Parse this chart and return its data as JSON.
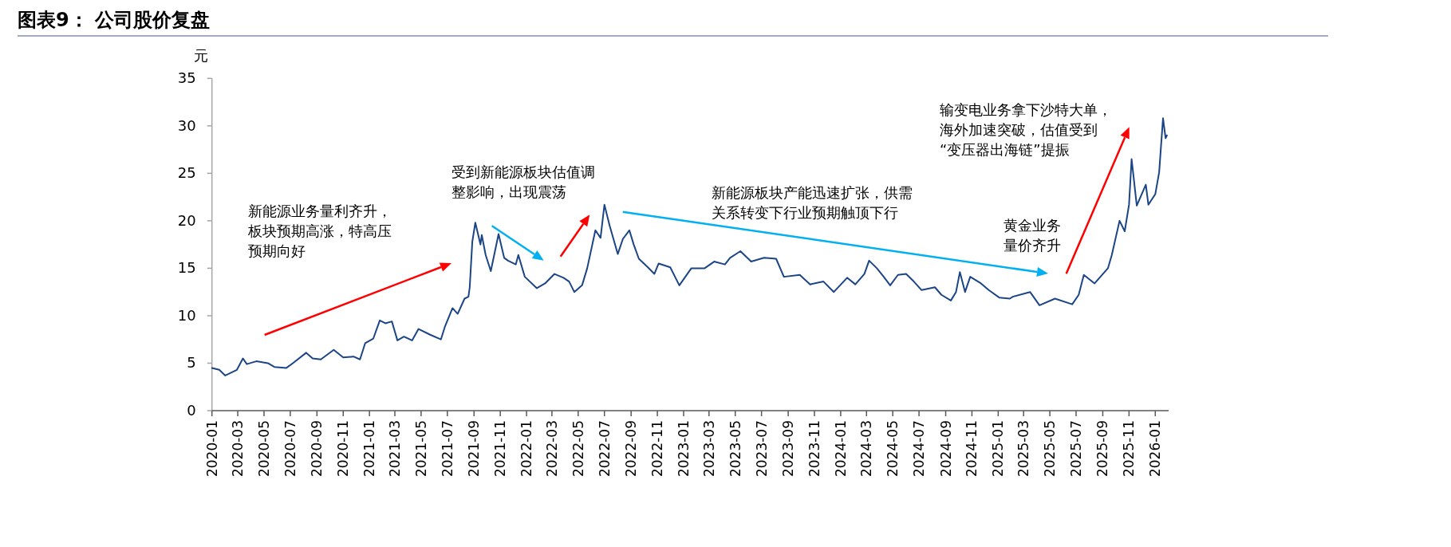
{
  "chart_data": {
    "type": "line",
    "title": "图表9： 公司股价复盘",
    "ylabel": "元",
    "x": [
      "2020-01-01",
      "2020-01-18",
      "2020-02-01",
      "2020-02-28",
      "2020-03-13",
      "2020-03-22",
      "2020-04-13",
      "2020-05-10",
      "2020-05-25",
      "2020-06-22",
      "2020-07-07",
      "2020-08-07",
      "2020-08-22",
      "2020-09-10",
      "2020-10-10",
      "2020-11-01",
      "2020-11-25",
      "2020-12-10",
      "2020-12-22",
      "2021-01-10",
      "2021-01-25",
      "2021-02-07",
      "2021-02-22",
      "2021-03-07",
      "2021-03-22",
      "2021-04-10",
      "2021-04-25",
      "2021-05-22",
      "2021-06-16",
      "2021-06-25",
      "2021-07-13",
      "2021-07-25",
      "2021-08-10",
      "2021-08-19",
      "2021-08-22",
      "2021-08-28",
      "2021-09-04",
      "2021-09-16",
      "2021-09-19",
      "2021-09-28",
      "2021-10-10",
      "2021-10-28",
      "2021-11-10",
      "2021-11-19",
      "2021-12-07",
      "2021-12-13",
      "2021-12-28",
      "2022-01-25",
      "2022-02-13",
      "2022-03-07",
      "2022-03-28",
      "2022-04-10",
      "2022-04-22",
      "2022-05-10",
      "2022-05-22",
      "2022-06-10",
      "2022-06-22",
      "2022-07-01",
      "2022-07-13",
      "2022-08-01",
      "2022-08-13",
      "2022-08-28",
      "2022-09-07",
      "2022-09-19",
      "2022-10-10",
      "2022-10-25",
      "2022-11-04",
      "2022-12-01",
      "2022-12-22",
      "2023-01-19",
      "2023-02-19",
      "2023-03-13",
      "2023-04-07",
      "2023-04-19",
      "2023-05-13",
      "2023-06-07",
      "2023-07-07",
      "2023-08-04",
      "2023-08-22",
      "2023-09-28",
      "2023-10-22",
      "2023-11-22",
      "2023-12-16",
      "2024-01-16",
      "2024-02-04",
      "2024-02-25",
      "2024-03-07",
      "2024-03-25",
      "2024-04-10",
      "2024-04-25",
      "2024-05-13",
      "2024-06-01",
      "2024-06-19",
      "2024-07-07",
      "2024-08-07",
      "2024-08-22",
      "2024-09-13",
      "2024-09-25",
      "2024-10-04",
      "2024-10-16",
      "2024-10-28",
      "2024-11-22",
      "2024-12-10",
      "2025-01-04",
      "2025-01-28",
      "2025-02-04",
      "2025-03-16",
      "2025-04-07",
      "2025-05-13",
      "2025-06-22",
      "2025-07-07",
      "2025-07-19",
      "2025-08-13",
      "2025-09-13",
      "2025-09-22",
      "2025-10-10",
      "2025-10-22",
      "2025-11-01",
      "2025-11-07",
      "2025-11-19",
      "2025-12-10",
      "2025-12-16",
      "2026-01-01",
      "2026-01-10",
      "2026-01-19",
      "2026-01-25",
      "2026-01-28"
    ],
    "series": [
      {
        "color": "#1b4586",
        "values": [
          4.5,
          4.3,
          3.7,
          4.3,
          5.5,
          4.9,
          5.2,
          5.0,
          4.6,
          4.5,
          5.0,
          6.1,
          5.5,
          5.4,
          6.4,
          5.6,
          5.7,
          5.4,
          7.1,
          7.6,
          9.5,
          9.2,
          9.4,
          7.4,
          7.8,
          7.4,
          8.6,
          8.0,
          7.5,
          8.8,
          10.8,
          10.2,
          11.8,
          12.0,
          13.0,
          17.8,
          19.8,
          17.5,
          18.5,
          16.4,
          14.7,
          18.6,
          16.1,
          15.8,
          15.4,
          16.4,
          14.1,
          12.9,
          13.4,
          14.4,
          14.0,
          13.6,
          12.5,
          13.2,
          15.0,
          19.0,
          18.2,
          21.7,
          19.5,
          16.5,
          18.1,
          19.0,
          17.5,
          16.0,
          15.1,
          14.4,
          15.5,
          15.1,
          13.2,
          15.0,
          15.0,
          15.7,
          15.4,
          16.1,
          16.8,
          15.7,
          16.1,
          16.0,
          14.1,
          14.3,
          13.3,
          13.6,
          12.5,
          14.0,
          13.3,
          14.4,
          15.8,
          15.0,
          14.1,
          13.2,
          14.3,
          14.4,
          13.6,
          12.7,
          13.0,
          12.2,
          11.6,
          12.5,
          14.6,
          12.5,
          14.1,
          13.4,
          12.7,
          11.9,
          11.8,
          12.0,
          12.5,
          11.1,
          11.8,
          11.2,
          12.2,
          14.3,
          13.4,
          15.0,
          16.4,
          20.0,
          18.9,
          21.7,
          26.5,
          21.6,
          23.8,
          21.7,
          22.8,
          25.1,
          30.8,
          28.7,
          29.0
        ]
      }
    ],
    "xlim": [
      "2020-01-01",
      "2026-02-01"
    ],
    "xticks": [
      {
        "value": "2020-01-01",
        "label": "2020-01"
      },
      {
        "value": "2020-03-01",
        "label": "2020-03"
      },
      {
        "value": "2020-05-01",
        "label": "2020-05"
      },
      {
        "value": "2020-07-01",
        "label": "2020-07"
      },
      {
        "value": "2020-09-01",
        "label": "2020-09"
      },
      {
        "value": "2020-11-01",
        "label": "2020-11"
      },
      {
        "value": "2021-01-01",
        "label": "2021-01"
      },
      {
        "value": "2021-03-01",
        "label": "2021-03"
      },
      {
        "value": "2021-05-01",
        "label": "2021-05"
      },
      {
        "value": "2021-07-01",
        "label": "2021-07"
      },
      {
        "value": "2021-09-01",
        "label": "2021-09"
      },
      {
        "value": "2021-11-01",
        "label": "2021-11"
      },
      {
        "value": "2022-01-01",
        "label": "2022-01"
      },
      {
        "value": "2022-03-01",
        "label": "2022-03"
      },
      {
        "value": "2022-05-01",
        "label": "2022-05"
      },
      {
        "value": "2022-07-01",
        "label": "2022-07"
      },
      {
        "value": "2022-09-01",
        "label": "2022-09"
      },
      {
        "value": "2022-11-01",
        "label": "2022-11"
      },
      {
        "value": "2023-01-01",
        "label": "2023-01"
      },
      {
        "value": "2023-03-01",
        "label": "2023-03"
      },
      {
        "value": "2023-05-01",
        "label": "2023-05"
      },
      {
        "value": "2023-07-01",
        "label": "2023-07"
      },
      {
        "value": "2023-09-01",
        "label": "2023-09"
      },
      {
        "value": "2023-11-01",
        "label": "2023-11"
      },
      {
        "value": "2024-01-01",
        "label": "2024-01"
      },
      {
        "value": "2024-03-01",
        "label": "2024-03"
      },
      {
        "value": "2024-05-01",
        "label": "2024-05"
      },
      {
        "value": "2024-07-01",
        "label": "2024-07"
      },
      {
        "value": "2024-09-01",
        "label": "2024-09"
      },
      {
        "value": "2024-11-01",
        "label": "2024-11"
      },
      {
        "value": "2025-01-01",
        "label": "2025-01"
      },
      {
        "value": "2025-03-01",
        "label": "2025-03"
      },
      {
        "value": "2025-05-01",
        "label": "2025-05"
      },
      {
        "value": "2025-07-01",
        "label": "2025-07"
      },
      {
        "value": "2025-09-01",
        "label": "2025-09"
      },
      {
        "value": "2025-11-01",
        "label": "2025-11"
      },
      {
        "value": "2026-01-01",
        "label": "2026-01"
      }
    ],
    "ylim": [
      0,
      35
    ],
    "yticks": [
      0,
      5,
      10,
      15,
      20,
      25,
      30,
      35
    ],
    "annotations": [
      "新能源业务量利齐升，板块预期高涨，特高压预期向好",
      "受到新能源板块估值调整影响，出现震荡",
      "新能源板块产能迅速扩张，供需关系转变下行业预期触顶下行",
      "黄金业务量价齐升",
      "输变电业务拿下沙特大单，海外加速突破，估值受到“变压器出海链”提振"
    ]
  }
}
